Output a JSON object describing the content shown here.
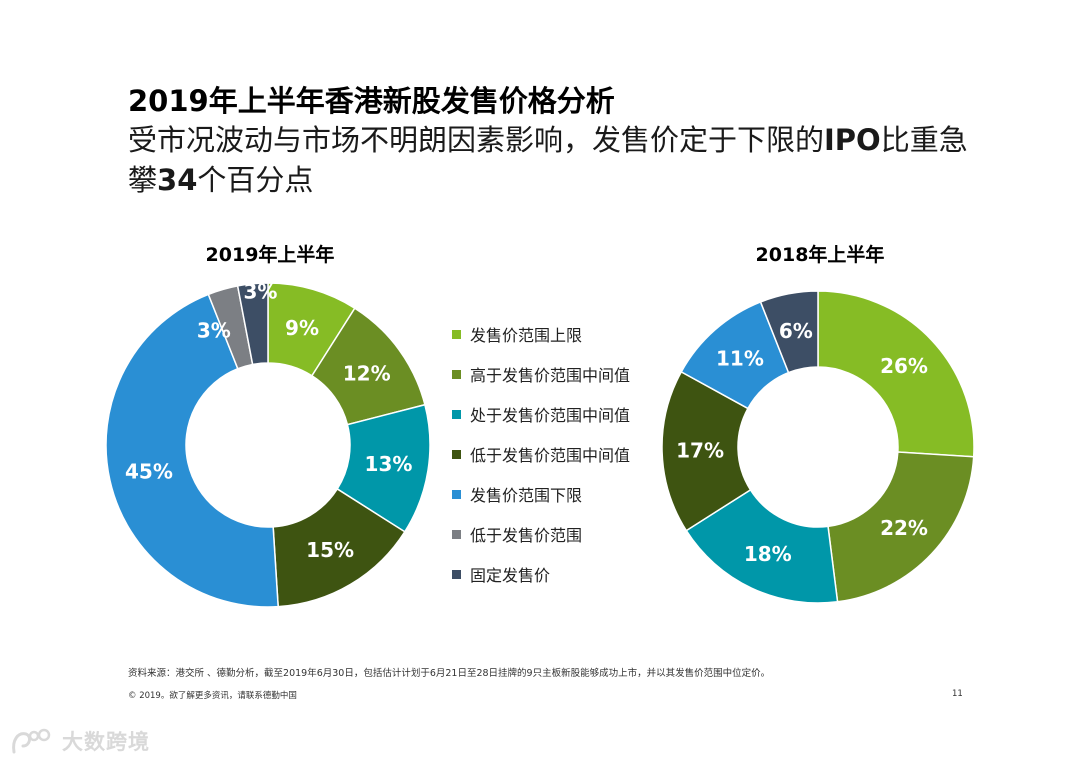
{
  "header": {
    "title_year": "2019",
    "title_rest": "年上半年香港新股发售价格分析",
    "subtitle_part1": "受市况波动与市场不明朗因素影响，发售价定于下限的",
    "subtitle_ipo": "IPO",
    "subtitle_part2": "比重急攀",
    "subtitle_num": "34",
    "subtitle_part3": "个百分点"
  },
  "legend": {
    "items": [
      {
        "label": "发售价范围上限",
        "color": "#86bc25"
      },
      {
        "label": "高于发售价范围中间值",
        "color": "#6b8e23"
      },
      {
        "label": "处于发售价范围中间值",
        "color": "#0097a9"
      },
      {
        "label": "低于发售价范围中间值",
        "color": "#3e5411"
      },
      {
        "label": "发售价范围下限",
        "color": "#2a8fd4"
      },
      {
        "label": "低于发售价范围",
        "color": "#7c7f84"
      },
      {
        "label": "固定发售价",
        "color": "#3d4e65"
      }
    ]
  },
  "chart_data": [
    {
      "type": "pie",
      "title": "2019年上半年",
      "categories": [
        "发售价范围上限",
        "高于发售价范围中间值",
        "处于发售价范围中间值",
        "低于发售价范围中间值",
        "发售价范围下限",
        "低于发售价范围",
        "固定发售价"
      ],
      "values": [
        9,
        12,
        13,
        15,
        45,
        3,
        3
      ],
      "labels": [
        "9%",
        "12%",
        "13%",
        "15%",
        "45%",
        "3%",
        "3%"
      ],
      "colors": [
        "#86bc25",
        "#6b8e23",
        "#0097a9",
        "#3e5411",
        "#2a8fd4",
        "#7c7f84",
        "#3d4e65"
      ]
    },
    {
      "type": "pie",
      "title": "2018年上半年",
      "categories": [
        "发售价范围上限",
        "高于发售价范围中间值",
        "处于发售价范围中间值",
        "低于发售价范围中间值",
        "发售价范围下限",
        "固定发售价"
      ],
      "values": [
        26,
        22,
        18,
        17,
        11,
        6
      ],
      "labels": [
        "26%",
        "22%",
        "18%",
        "17%",
        "11%",
        "6%"
      ],
      "colors": [
        "#86bc25",
        "#6b8e23",
        "#0097a9",
        "#3e5411",
        "#2a8fd4",
        "#3d4e65"
      ]
    }
  ],
  "footer": {
    "source": "资料来源：港交所 、德勤分析，截至2019年6月30日，包括估计计划于6月21日至28日挂牌的9只主板新股能够成功上市，并以其发售价范围中位定价。",
    "copyright": "© 2019。欲了解更多资讯，请联系德勤中国",
    "page_number": "11"
  },
  "watermark": {
    "text": "大数跨境"
  }
}
